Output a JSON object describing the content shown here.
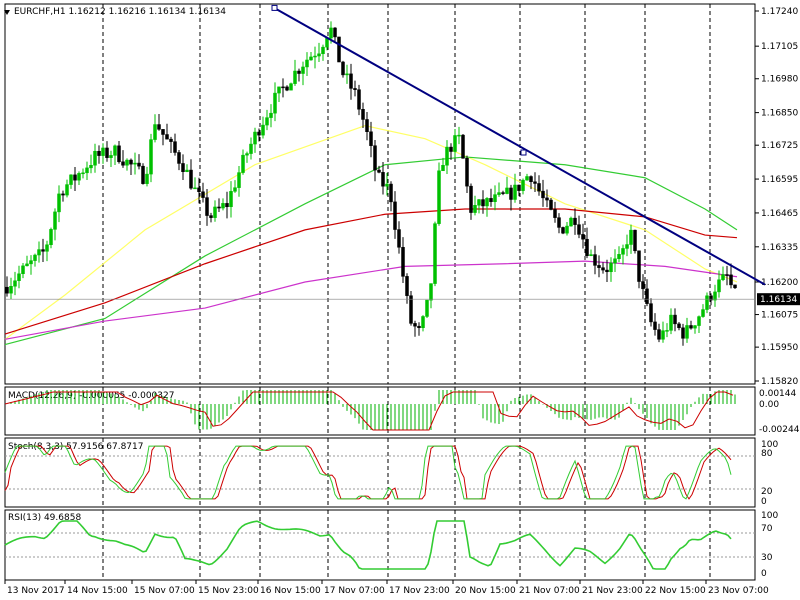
{
  "window": {
    "symbol_info": "EURCHF,H1  1.16212 1.16216 1.16134 1.16134"
  },
  "colors": {
    "background": "#ffffff",
    "grid": "#000000",
    "bull_candle": "#00c000",
    "bear_candle": "#000000",
    "ema_fast": "#ffff66",
    "ema_mid": "#33cc33",
    "ema_slow": "#cc0000",
    "ema_slowest": "#cc33cc",
    "trendline": "#000080",
    "price_line": "#808080",
    "macd_hist": "#00b000",
    "macd_signal": "#cc0000",
    "stoch_main": "#33cc33",
    "stoch_signal": "#cc0000",
    "rsi_line": "#33cc33",
    "axis_text": "#000000",
    "price_tag_bg": "#000000",
    "price_tag_text": "#ffffff"
  },
  "chart_data": [
    {
      "type": "candlestick",
      "panel": "price",
      "symbol": "EURCHF",
      "timeframe": "H1",
      "header": "EURCHF,H1  1.16212 1.16216 1.16134 1.16134",
      "y_tick_labels": [
        "1.17240",
        "1.17105",
        "1.16980",
        "1.16850",
        "1.16725",
        "1.16595",
        "1.16465",
        "1.16335",
        "1.16200",
        "1.16075",
        "1.15950",
        "1.15820"
      ],
      "ylim": [
        1.1582,
        1.1724
      ],
      "current_price": "1.16134",
      "x_tick_labels": [
        "13 Nov 2017",
        "14 Nov 15:00",
        "15 Nov 07:00",
        "15 Nov 23:00",
        "16 Nov 15:00",
        "17 Nov 07:00",
        "17 Nov 23:00",
        "20 Nov 15:00",
        "21 Nov 07:00",
        "21 Nov 23:00",
        "22 Nov 15:00",
        "23 Nov 07:00"
      ],
      "price_path": [
        [
          0,
          1.1618
        ],
        [
          20,
          1.1625
        ],
        [
          40,
          1.1632
        ],
        [
          55,
          1.1655
        ],
        [
          70,
          1.166
        ],
        [
          90,
          1.1668
        ],
        [
          110,
          1.167
        ],
        [
          125,
          1.1665
        ],
        [
          140,
          1.166
        ],
        [
          150,
          1.1682
        ],
        [
          165,
          1.1672
        ],
        [
          178,
          1.1665
        ],
        [
          190,
          1.1655
        ],
        [
          205,
          1.1645
        ],
        [
          222,
          1.165
        ],
        [
          240,
          1.1668
        ],
        [
          255,
          1.168
        ],
        [
          270,
          1.169
        ],
        [
          285,
          1.1698
        ],
        [
          300,
          1.1705
        ],
        [
          315,
          1.171
        ],
        [
          325,
          1.1718
        ],
        [
          338,
          1.17
        ],
        [
          350,
          1.1692
        ],
        [
          360,
          1.168
        ],
        [
          372,
          1.166
        ],
        [
          385,
          1.1655
        ],
        [
          395,
          1.163
        ],
        [
          405,
          1.1605
        ],
        [
          415,
          1.16
        ],
        [
          425,
          1.1615
        ],
        [
          435,
          1.1665
        ],
        [
          445,
          1.1672
        ],
        [
          455,
          1.1675
        ],
        [
          465,
          1.1648
        ],
        [
          480,
          1.165
        ],
        [
          495,
          1.1652
        ],
        [
          510,
          1.1655
        ],
        [
          525,
          1.1662
        ],
        [
          540,
          1.165
        ],
        [
          555,
          1.164
        ],
        [
          570,
          1.1645
        ],
        [
          585,
          1.163
        ],
        [
          600,
          1.1625
        ],
        [
          615,
          1.1628
        ],
        [
          625,
          1.164
        ],
        [
          635,
          1.162
        ],
        [
          645,
          1.1605
        ],
        [
          655,
          1.1598
        ],
        [
          665,
          1.1605
        ],
        [
          680,
          1.16
        ],
        [
          695,
          1.1608
        ],
        [
          710,
          1.1618
        ],
        [
          722,
          1.1622
        ],
        [
          732,
          1.1613
        ]
      ],
      "indicators": {
        "ema_fast": [
          [
            0,
            1.1598
          ],
          [
            60,
            1.1615
          ],
          [
            140,
            1.164
          ],
          [
            250,
            1.1665
          ],
          [
            360,
            1.168
          ],
          [
            420,
            1.1675
          ],
          [
            480,
            1.1665
          ],
          [
            560,
            1.165
          ],
          [
            640,
            1.164
          ],
          [
            700,
            1.1625
          ],
          [
            732,
            1.162
          ]
        ],
        "ema_mid": [
          [
            0,
            1.1596
          ],
          [
            100,
            1.1606
          ],
          [
            200,
            1.163
          ],
          [
            300,
            1.165
          ],
          [
            380,
            1.1665
          ],
          [
            460,
            1.1668
          ],
          [
            560,
            1.1665
          ],
          [
            640,
            1.166
          ],
          [
            700,
            1.1648
          ],
          [
            732,
            1.164
          ]
        ],
        "ema_slow": [
          [
            0,
            1.16
          ],
          [
            100,
            1.1612
          ],
          [
            200,
            1.1627
          ],
          [
            300,
            1.164
          ],
          [
            380,
            1.1646
          ],
          [
            460,
            1.1648
          ],
          [
            560,
            1.1648
          ],
          [
            640,
            1.1645
          ],
          [
            700,
            1.1638
          ],
          [
            732,
            1.1637
          ]
        ],
        "ema_slowest": [
          [
            0,
            1.1598
          ],
          [
            100,
            1.1605
          ],
          [
            200,
            1.161
          ],
          [
            300,
            1.162
          ],
          [
            400,
            1.1626
          ],
          [
            500,
            1.1627
          ],
          [
            580,
            1.1628
          ],
          [
            660,
            1.1626
          ],
          [
            732,
            1.1622
          ]
        ]
      },
      "trendline": [
        [
          270,
          1.1725
        ],
        [
          760,
          1.1619
        ]
      ]
    },
    {
      "type": "histogram",
      "panel": "MACD",
      "label": "MACD(12,26,9) -0.000055 -0.000327",
      "y_tick_labels": [
        "0.00144",
        "0.00",
        "-0.002446"
      ],
      "ylim": [
        -0.002446,
        0.00144
      ]
    },
    {
      "type": "line",
      "panel": "Stoch",
      "label": "Stoch(8,3,3) 57.9156 67.8717",
      "y_tick_labels": [
        "100",
        "80",
        "20",
        "0"
      ],
      "ylim": [
        0,
        100
      ],
      "main_value": 57.9156,
      "signal_value": 67.8717
    },
    {
      "type": "line",
      "panel": "RSI",
      "label": "RSI(13) 49.6858",
      "y_tick_labels": [
        "100",
        "70",
        "30",
        "0"
      ],
      "ylim": [
        0,
        100
      ],
      "value": 49.6858
    }
  ]
}
